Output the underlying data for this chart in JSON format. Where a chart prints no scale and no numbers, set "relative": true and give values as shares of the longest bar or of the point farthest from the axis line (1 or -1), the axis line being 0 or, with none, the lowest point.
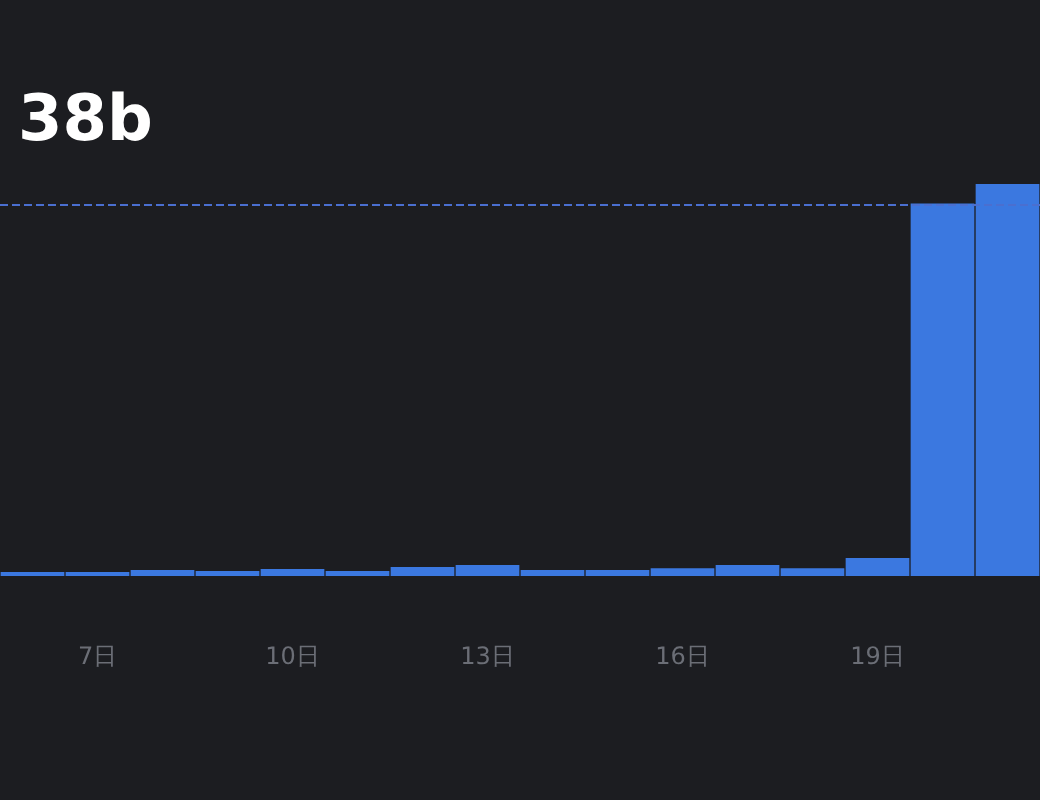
{
  "chart_data": {
    "type": "bar",
    "relative": true,
    "title": "38b",
    "categories": [
      null,
      "7日",
      null,
      null,
      "10日",
      null,
      null,
      "13日",
      null,
      null,
      "16日",
      null,
      null,
      "19日",
      null,
      null
    ],
    "values": [
      0.01,
      0.01,
      0.015,
      0.013,
      0.018,
      0.013,
      0.023,
      0.028,
      0.015,
      0.015,
      0.02,
      0.028,
      0.02,
      0.046,
      0.95,
      1
    ],
    "color": "#3b78e0",
    "ref_lines": [
      {
        "axis": "y",
        "value": 0.95,
        "color": "#4a6fd0",
        "line_style": "dashed"
      }
    ],
    "grid": false
  }
}
